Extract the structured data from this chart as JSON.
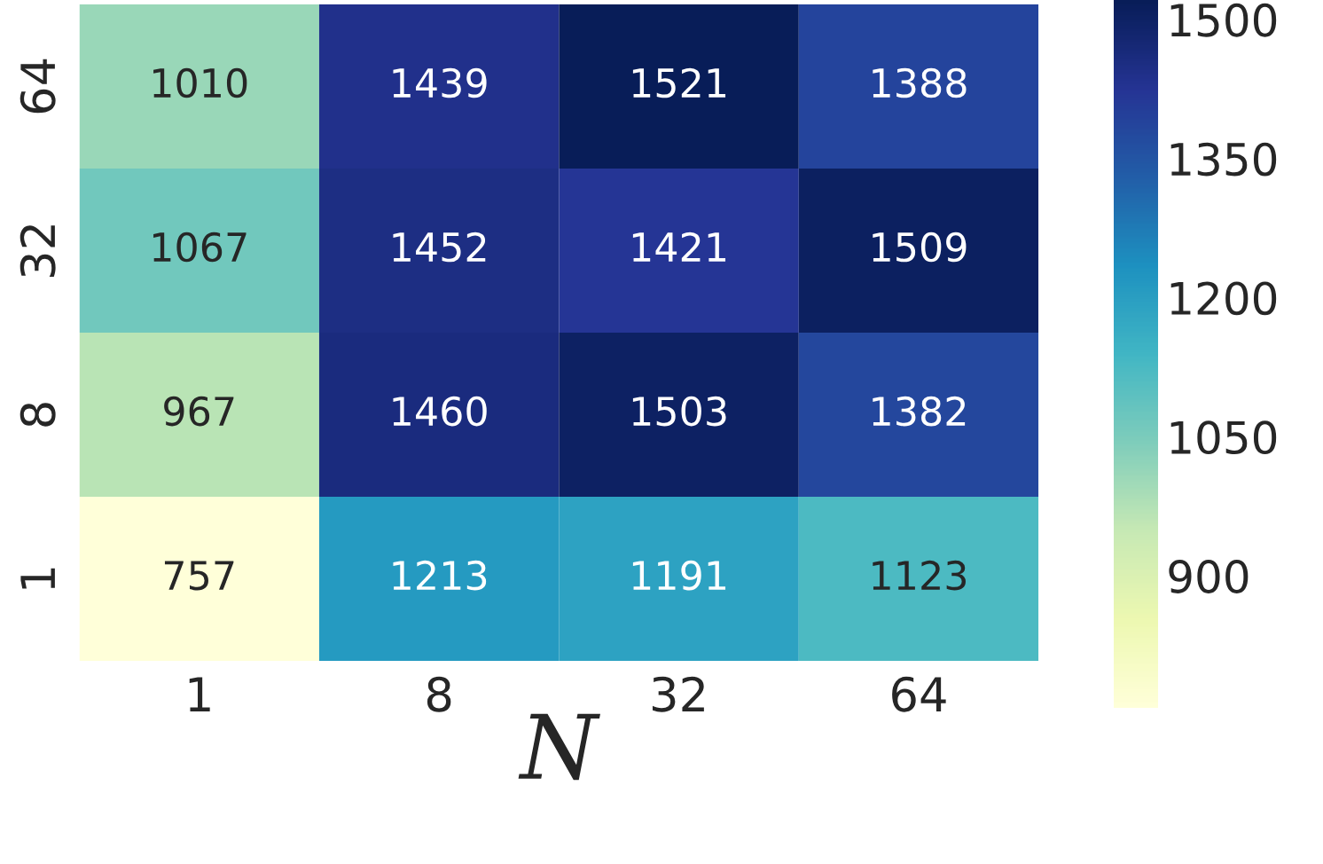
{
  "chart_data": {
    "type": "heatmap",
    "xlabel": "N",
    "categories": [
      "1",
      "8",
      "32",
      "64"
    ],
    "y_categories": [
      "64",
      "32",
      "8",
      "1"
    ],
    "cells": [
      [
        1010,
        1439,
        1521,
        1388
      ],
      [
        1067,
        1452,
        1421,
        1509
      ],
      [
        967,
        1460,
        1503,
        1382
      ],
      [
        757,
        1213,
        1191,
        1123
      ]
    ],
    "data_labels": true,
    "clim": [
      757,
      1521
    ],
    "cticks": [
      900,
      1050,
      1200,
      1350,
      1500
    ]
  }
}
